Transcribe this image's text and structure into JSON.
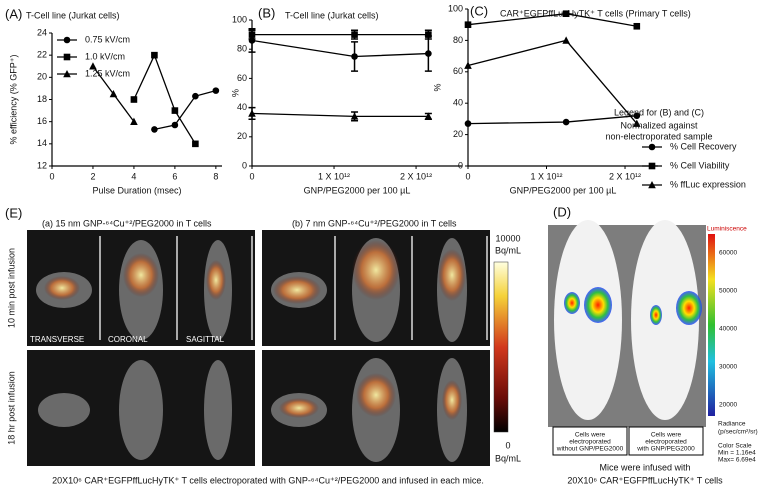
{
  "chart_data": [
    {
      "type": "line",
      "panel": "(A)",
      "title": "T-Cell line (Jurkat cells)",
      "xlabel": "Pulse Duration (msec)",
      "ylabel": "% efficiency (% GFP⁺)",
      "xlim": [
        0,
        8.3
      ],
      "xticks": [
        0,
        2,
        4,
        6,
        8
      ],
      "ylim": [
        12,
        24
      ],
      "yticks": [
        12,
        14,
        16,
        18,
        20,
        22,
        24
      ],
      "legend": "upper left",
      "series": [
        {
          "name": "0.75 kV/cm",
          "marker": "circle",
          "color": "#000000",
          "x": [
            5,
            6,
            7,
            8
          ],
          "values": [
            15.3,
            15.7,
            18.3,
            18.8
          ]
        },
        {
          "name": "1.0 kV/cm",
          "marker": "square",
          "color": "#000000",
          "x": [
            4,
            5,
            6,
            7
          ],
          "values": [
            18,
            22,
            17,
            14
          ]
        },
        {
          "name": "1.25 kV/cm",
          "marker": "triangle",
          "color": "#000000",
          "x": [
            2,
            3,
            4
          ],
          "values": [
            21,
            18.5,
            16
          ]
        }
      ]
    },
    {
      "type": "line",
      "panel": "(B)",
      "title": "T-Cell line (Jurkat cells)",
      "xlabel": "GNP/PEG2000 per 100 µL",
      "ylabel": "%",
      "xlim": [
        0,
        2560000000000.0
      ],
      "xticks": [
        0,
        {
          "value": 1000000000000.0,
          "label": "1 X 10¹²"
        },
        {
          "value": 2000000000000.0,
          "label": "2 X 10¹²"
        }
      ],
      "ylim": [
        0,
        100
      ],
      "yticks": [
        0,
        20,
        40,
        60,
        80,
        100
      ],
      "series": [
        {
          "marker": "circle",
          "color": "#000000",
          "x": [
            0,
            1250000000000.0,
            2150000000000.0
          ],
          "values": [
            86,
            75,
            77
          ],
          "errors": [
            8,
            10,
            12
          ]
        },
        {
          "marker": "square",
          "color": "#000000",
          "x": [
            0,
            1250000000000.0,
            2150000000000.0
          ],
          "values": [
            90,
            90,
            90
          ],
          "errors": [
            3,
            3,
            3
          ]
        },
        {
          "marker": "triangle",
          "color": "#000000",
          "x": [
            0,
            1250000000000.0,
            2150000000000.0
          ],
          "values": [
            36,
            34,
            34
          ],
          "errors": [
            4,
            3,
            2
          ]
        }
      ]
    },
    {
      "type": "line",
      "panel": "(C)",
      "title": "CAR⁺EGFPffLucHyTK⁺ T cells (Primary T cells)",
      "xlabel": "GNP/PEG2000 per 100 µL",
      "ylabel": "%",
      "xlim": [
        0,
        2420000000000.0
      ],
      "xticks": [
        0,
        {
          "value": 1000000000000.0,
          "label": "1 X 10¹²"
        },
        {
          "value": 2000000000000.0,
          "label": "2 X 10¹²"
        }
      ],
      "ylim": [
        0,
        100
      ],
      "yticks": [
        0,
        20,
        40,
        60,
        80,
        100
      ],
      "legend": "right",
      "legend_title": "Legend for (B) and (C)",
      "legend_note": [
        "Normalized against",
        "non-electroporated sample"
      ],
      "series": [
        {
          "name": "% Cell Recovery",
          "marker": "circle",
          "color": "#000000",
          "x": [
            0,
            1250000000000.0,
            2150000000000.0
          ],
          "values": [
            27,
            28,
            32
          ]
        },
        {
          "name": "% Cell Viability",
          "marker": "square",
          "color": "#000000",
          "x": [
            0,
            1250000000000.0,
            2150000000000.0
          ],
          "values": [
            90,
            97,
            89
          ]
        },
        {
          "name": "% ffLuc expression",
          "marker": "triangle",
          "color": "#000000",
          "x": [
            0,
            1250000000000.0,
            2150000000000.0
          ],
          "values": [
            64,
            80,
            27
          ]
        }
      ]
    }
  ],
  "panel_e": {
    "panel": "(E)",
    "subtitles": [
      "(a) 15 nm GNP-⁶⁴Cu⁺²/PEG2000 in T cells",
      "(b) 7 nm GNP-⁶⁴Cu⁺²/PEG2000 in T cells"
    ],
    "views": [
      "TRANSVERSE",
      "CORONAL",
      "SAGITTAL"
    ],
    "rows": [
      "10 min post infusion",
      "18 hr post infusion"
    ],
    "colorbar_max": "10000",
    "colorbar_min": "0",
    "colorbar_unit": "Bq/mL",
    "caption": "20X10⁶ CAR⁺EGFPffLucHyTK⁺ T cells electroporated with GNP-⁶⁴Cu⁺²/PEG2000 and infused in each mice."
  },
  "panel_d": {
    "panel": "(D)",
    "colorbar_title": "Luminiscence",
    "colorbar_ticks": [
      60000,
      50000,
      40000,
      30000,
      20000
    ],
    "radiance": [
      "Radiance",
      "(p/sec/cm²/sr)"
    ],
    "scale": [
      "Color Scale",
      "Min = 1.16e4",
      "Max= 6.69e4"
    ],
    "box_left": [
      "Cells were",
      "electroporated",
      "without GNP/PEG2000"
    ],
    "box_right": [
      "Cells were",
      "electroporated",
      "with GNP/PEG2000"
    ],
    "caption": [
      "Mice were infused with",
      "20X10⁶ CAR⁺EGFPffLucHyTK⁺ T cells"
    ]
  }
}
